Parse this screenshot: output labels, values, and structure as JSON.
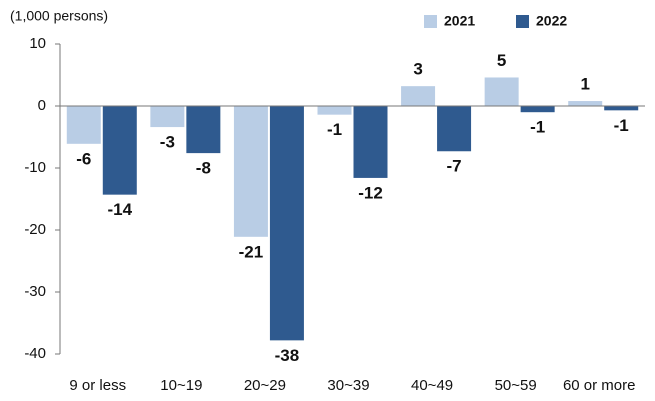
{
  "chart_data": {
    "type": "bar",
    "y_label": "(1,000 persons)",
    "categories": [
      "9 or less",
      "10~19",
      "20~29",
      "30~39",
      "40~49",
      "50~59",
      "60 or more"
    ],
    "series": [
      {
        "name": "2021",
        "color": "#b9cde5",
        "values": [
          -6.1,
          -3.4,
          -21.1,
          -1.4,
          3.2,
          4.6,
          0.8
        ],
        "value_labels": [
          "-6",
          "-3",
          "-21",
          "-1",
          "3",
          "5",
          "1"
        ]
      },
      {
        "name": "2022",
        "color": "#2f5a8f",
        "values": [
          -14.3,
          -7.6,
          -37.8,
          -11.6,
          -7.3,
          -1.0,
          -0.7
        ],
        "value_labels": [
          "-14",
          "-8",
          "-38",
          "-12",
          "-7",
          "-1",
          "-1"
        ]
      }
    ],
    "ylim": [
      -40,
      10
    ],
    "yticks": [
      10,
      0,
      -10,
      -20,
      -30,
      -40
    ],
    "legend": "top-right",
    "grid": false
  }
}
